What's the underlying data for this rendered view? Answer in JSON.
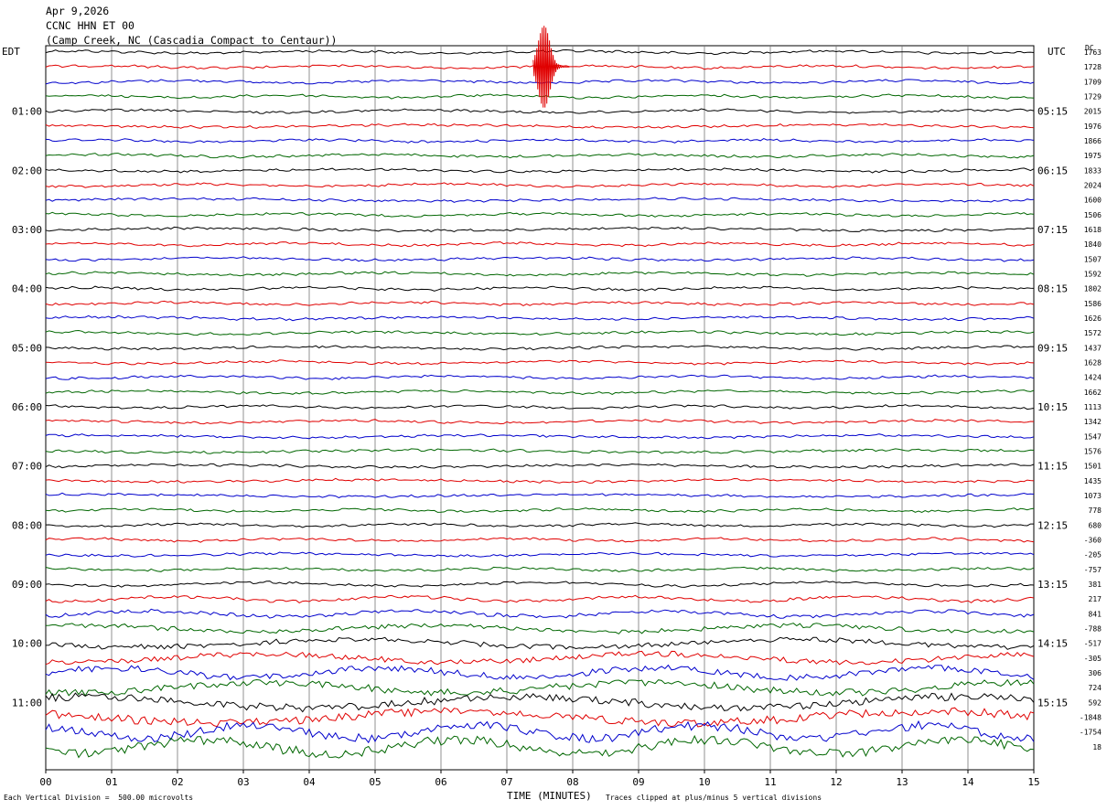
{
  "chart_data": {
    "type": "line",
    "title_lines": [
      "Apr 9,2026",
      "CCNC HHN ET 00",
      "(Camp Creek, NC (Cascadia Compact to Centaur))"
    ],
    "left_timezone": "EDT",
    "right_timezone": "UTC",
    "dc_label": "DC",
    "xlabel": "TIME (MINUTES)",
    "x_ticks": [
      "00",
      "01",
      "02",
      "03",
      "04",
      "05",
      "06",
      "07",
      "08",
      "09",
      "10",
      "11",
      "12",
      "13",
      "14",
      "15"
    ],
    "xlim": [
      0,
      15
    ],
    "left_hour_labels": [
      "01:00",
      "02:00",
      "03:00",
      "04:00",
      "05:00",
      "06:00",
      "07:00",
      "08:00",
      "09:00",
      "10:00",
      "11:00"
    ],
    "right_hour_labels": [
      "05:15",
      "06:15",
      "07:15",
      "08:15",
      "09:15",
      "10:15",
      "11:15",
      "12:15",
      "13:15",
      "14:15",
      "15:15"
    ],
    "trace_colors": [
      "#000000",
      "#e00000",
      "#0000cc",
      "#006600"
    ],
    "dc_offsets": [
      "1763",
      "1728",
      "1709",
      "1729",
      "2015",
      "1976",
      "1866",
      "1975",
      "1833",
      "2024",
      "1600",
      "1506",
      "1618",
      "1840",
      "1507",
      "1592",
      "1802",
      "1586",
      "1626",
      "1572",
      "1437",
      "1628",
      "1424",
      "1662",
      "1113",
      "1342",
      "1547",
      "1576",
      "1501",
      "1435",
      "1073",
      "778",
      "680",
      "-360",
      "-205",
      "-757",
      "381",
      "217",
      "841",
      "-788",
      "-517",
      "-305",
      "306",
      "724",
      "592",
      "-1848",
      "-1754",
      "18"
    ],
    "scale_note": "Each Vertical Division =  500.00 microvolts",
    "clip_note": "Traces clipped at plus/minus 5 vertical divisions"
  }
}
